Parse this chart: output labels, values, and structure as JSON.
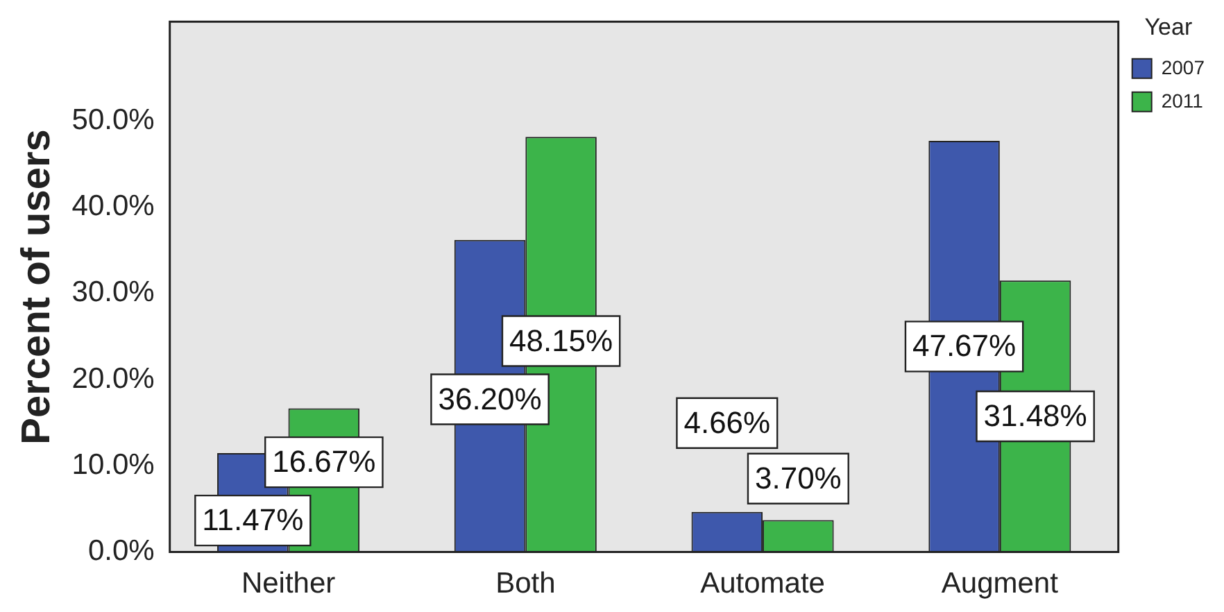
{
  "chart_data": {
    "type": "bar",
    "ylabel": "Percent of users",
    "legend_title": "Year",
    "categories": [
      "Neither",
      "Both",
      "Automate",
      "Augment"
    ],
    "series": [
      {
        "name": "2007",
        "color": "#3e58ac",
        "values": [
          11.47,
          36.2,
          4.66,
          47.67
        ],
        "value_labels": [
          "11.47%",
          "36.20%",
          "4.66%",
          "47.67%"
        ]
      },
      {
        "name": "2011",
        "color": "#3cb44a",
        "values": [
          16.67,
          48.15,
          3.7,
          31.48
        ],
        "value_labels": [
          "16.67%",
          "48.15%",
          "3.70%",
          "31.48%"
        ]
      }
    ],
    "ylim": [
      0,
      61.5
    ],
    "yticks": [
      {
        "value": 0,
        "label": "0.0%"
      },
      {
        "value": 10,
        "label": "10.0%"
      },
      {
        "value": 20,
        "label": "20.0%"
      },
      {
        "value": 30,
        "label": "30.0%"
      },
      {
        "value": 40,
        "label": "40.0%"
      },
      {
        "value": 50,
        "label": "50.0%"
      }
    ],
    "legend": "top right",
    "grid": false
  }
}
